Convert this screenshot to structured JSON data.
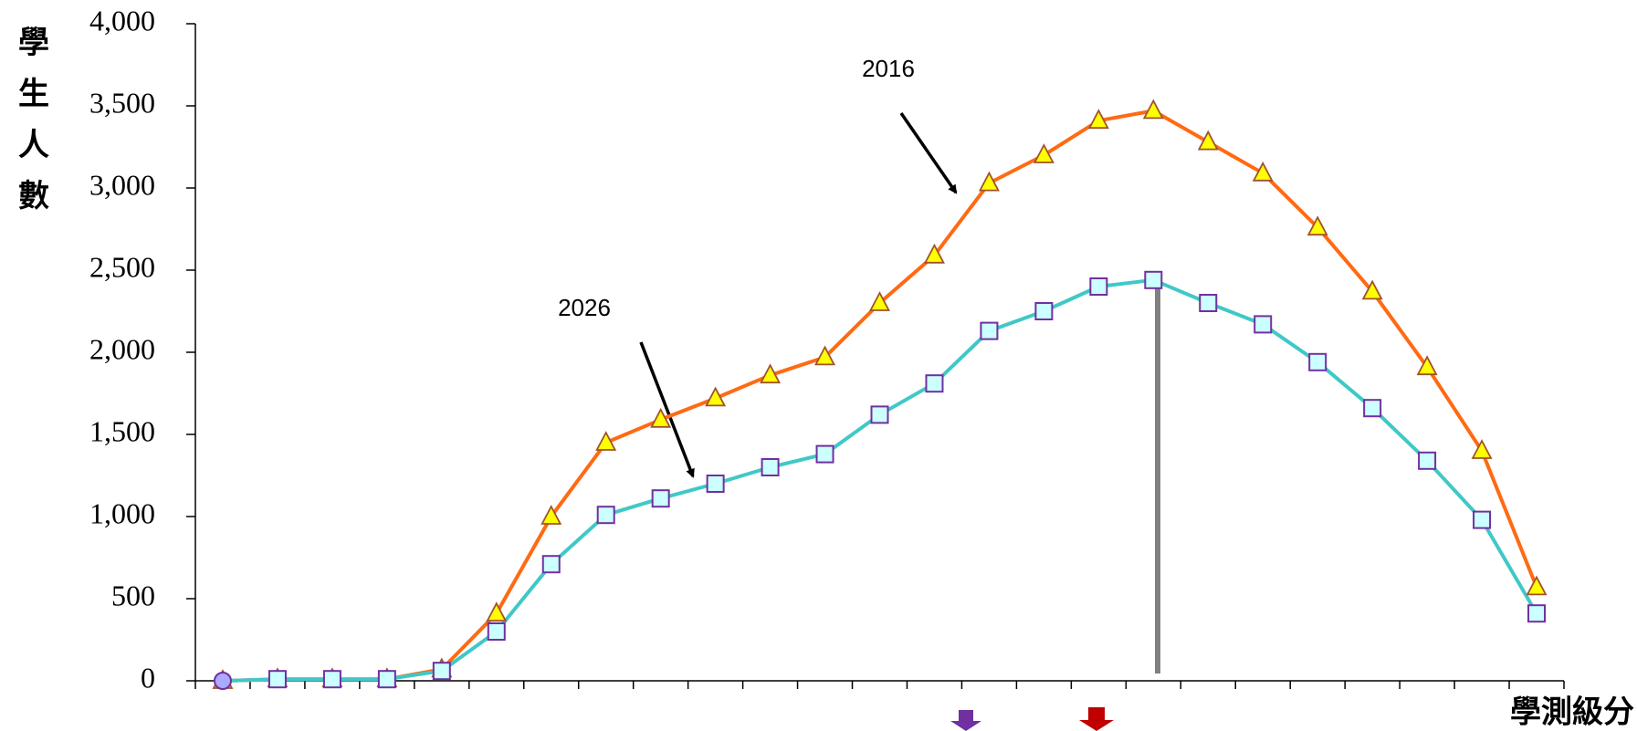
{
  "chart_data": {
    "type": "line",
    "y_label": "學生人數",
    "x_label": "學測級分",
    "categories": [
      null,
      null,
      null,
      null,
      null,
      null,
      null,
      null,
      null,
      null,
      null,
      null,
      null,
      null,
      null,
      null,
      null,
      null,
      null,
      null,
      null,
      null,
      null,
      null,
      null
    ],
    "series": [
      {
        "name": "2016",
        "color": "#ff6a13",
        "values": [
          0,
          10,
          10,
          10,
          70,
          410,
          1000,
          1450,
          1590,
          1720,
          1860,
          1970,
          2300,
          2590,
          3030,
          3200,
          3410,
          3470,
          3280,
          3090,
          2760,
          2370,
          1910,
          1400,
          570
        ]
      },
      {
        "name": "2026",
        "color": "#40c8c8",
        "values": [
          0,
          10,
          10,
          10,
          60,
          300,
          710,
          1010,
          1110,
          1200,
          1300,
          1380,
          1620,
          1810,
          2130,
          2250,
          2400,
          2440,
          2300,
          2170,
          1940,
          1660,
          1340,
          980,
          410
        ]
      }
    ],
    "ylim": [
      0,
      4000
    ],
    "yticks": [
      0,
      500,
      {
        "value": 1000,
        "label": "1,000"
      },
      {
        "value": 1500,
        "label": "1,500"
      },
      {
        "value": 2000,
        "label": "2,000"
      },
      {
        "value": 2500,
        "label": "2,500"
      },
      {
        "value": 3000,
        "label": "3,000"
      },
      {
        "value": 3500,
        "label": "3,500"
      },
      {
        "value": 4000,
        "label": "4,000"
      }
    ]
  }
}
